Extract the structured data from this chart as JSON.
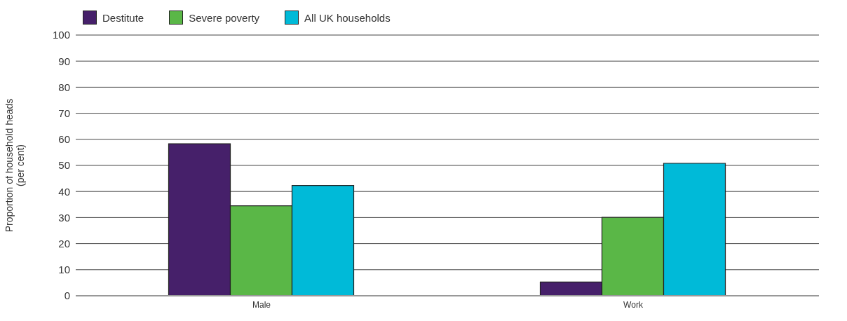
{
  "chart_data": {
    "type": "bar",
    "ylabel": "Proportion of household heads\n(per cent)",
    "categories": [
      "Male",
      "Work"
    ],
    "series": [
      {
        "name": "Destitute",
        "color": "#46206a",
        "values": [
          58.3,
          5.3
        ]
      },
      {
        "name": "Severe poverty",
        "color": "#5ab747",
        "values": [
          34.5,
          30.1
        ]
      },
      {
        "name": "All UK households",
        "color": "#00bad8",
        "values": [
          42.3,
          50.8
        ]
      }
    ],
    "ylim": [
      0,
      100
    ],
    "yticks": [
      0,
      10,
      20,
      30,
      40,
      50,
      60,
      70,
      80,
      90,
      100
    ],
    "grid": "y",
    "legend": "top left"
  }
}
